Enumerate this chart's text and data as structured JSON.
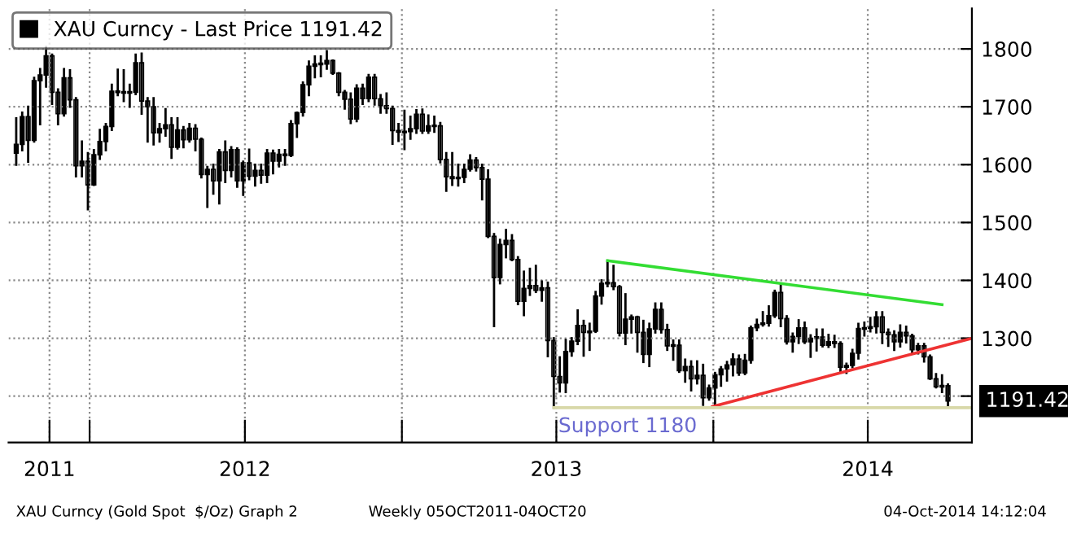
{
  "chart_data": {
    "type": "candlestick",
    "legend": "top left",
    "grid": true,
    "ylim": [
      1120,
      1870
    ],
    "yticks": [
      {
        "value": 1200,
        "label": null
      },
      1300,
      1400,
      1500,
      1600,
      1700,
      1800
    ],
    "xlim": [
      "2011-09-28",
      "2014-10-31"
    ],
    "xticks": [
      {
        "value": "2011-11-15",
        "label": "2011"
      },
      {
        "value": "2012-01-01",
        "label": null
      },
      {
        "value": "2012-07-01",
        "label": "2012"
      },
      {
        "value": "2013-01-01",
        "label": null
      },
      {
        "value": "2013-07-01",
        "label": "2013"
      },
      {
        "value": "2014-01-01",
        "label": null
      },
      {
        "value": "2014-07-01",
        "label": "2014"
      }
    ],
    "series": [
      {
        "name": "XAU Curncy - Last Price 1191.42",
        "color": "#000000",
        "x": [
          "2011-10-07",
          "2011-10-14",
          "2011-10-21",
          "2011-10-28",
          "2011-11-04",
          "2011-11-11",
          "2011-11-18",
          "2011-11-25",
          "2011-12-02",
          "2011-12-09",
          "2011-12-16",
          "2011-12-23",
          "2011-12-30",
          "2012-01-06",
          "2012-01-13",
          "2012-01-20",
          "2012-01-27",
          "2012-02-03",
          "2012-02-10",
          "2012-02-17",
          "2012-02-24",
          "2012-03-02",
          "2012-03-09",
          "2012-03-16",
          "2012-03-23",
          "2012-03-30",
          "2012-04-06",
          "2012-04-13",
          "2012-04-20",
          "2012-04-27",
          "2012-05-04",
          "2012-05-11",
          "2012-05-18",
          "2012-05-25",
          "2012-06-01",
          "2012-06-08",
          "2012-06-15",
          "2012-06-22",
          "2012-06-29",
          "2012-07-06",
          "2012-07-13",
          "2012-07-20",
          "2012-07-27",
          "2012-08-03",
          "2012-08-10",
          "2012-08-17",
          "2012-08-24",
          "2012-08-31",
          "2012-09-07",
          "2012-09-14",
          "2012-09-21",
          "2012-09-28",
          "2012-10-05",
          "2012-10-12",
          "2012-10-19",
          "2012-10-26",
          "2012-11-02",
          "2012-11-09",
          "2012-11-16",
          "2012-11-23",
          "2012-11-30",
          "2012-12-07",
          "2012-12-14",
          "2012-12-21",
          "2012-12-28",
          "2013-01-04",
          "2013-01-11",
          "2013-01-18",
          "2013-01-25",
          "2013-02-01",
          "2013-02-08",
          "2013-02-15",
          "2013-02-22",
          "2013-03-01",
          "2013-03-08",
          "2013-03-15",
          "2013-03-22",
          "2013-03-29",
          "2013-04-05",
          "2013-04-12",
          "2013-04-19",
          "2013-04-26",
          "2013-05-03",
          "2013-05-10",
          "2013-05-17",
          "2013-05-24",
          "2013-05-31",
          "2013-06-07",
          "2013-06-14",
          "2013-06-21",
          "2013-06-28",
          "2013-07-05",
          "2013-07-12",
          "2013-07-19",
          "2013-07-26",
          "2013-08-02",
          "2013-08-09",
          "2013-08-16",
          "2013-08-23",
          "2013-08-30",
          "2013-09-06",
          "2013-09-13",
          "2013-09-20",
          "2013-09-27",
          "2013-10-04",
          "2013-10-11",
          "2013-10-18",
          "2013-10-25",
          "2013-11-01",
          "2013-11-08",
          "2013-11-15",
          "2013-11-22",
          "2013-11-29",
          "2013-12-06",
          "2013-12-13",
          "2013-12-20",
          "2013-12-27",
          "2014-01-03",
          "2014-01-10",
          "2014-01-17",
          "2014-01-24",
          "2014-01-31",
          "2014-02-07",
          "2014-02-14",
          "2014-02-21",
          "2014-02-28",
          "2014-03-07",
          "2014-03-14",
          "2014-03-21",
          "2014-03-28",
          "2014-04-04",
          "2014-04-11",
          "2014-04-18",
          "2014-04-25",
          "2014-05-02",
          "2014-05-09",
          "2014-05-16",
          "2014-05-23",
          "2014-05-30",
          "2014-06-06",
          "2014-06-13",
          "2014-06-20",
          "2014-06-27",
          "2014-07-04",
          "2014-07-11",
          "2014-07-18",
          "2014-07-25",
          "2014-08-01",
          "2014-08-08",
          "2014-08-15",
          "2014-08-22",
          "2014-08-29",
          "2014-09-05",
          "2014-09-12",
          "2014-09-19",
          "2014-09-26",
          "2014-10-03"
        ],
        "ohlc": [
          [
            1620,
            1680,
            1600,
            1635
          ],
          [
            1635,
            1690,
            1625,
            1683
          ],
          [
            1683,
            1700,
            1605,
            1642
          ],
          [
            1642,
            1750,
            1640,
            1745
          ],
          [
            1745,
            1765,
            1670,
            1755
          ],
          [
            1755,
            1803,
            1735,
            1788
          ],
          [
            1788,
            1790,
            1705,
            1725
          ],
          [
            1725,
            1730,
            1670,
            1688
          ],
          [
            1688,
            1765,
            1685,
            1750
          ],
          [
            1750,
            1763,
            1700,
            1712
          ],
          [
            1712,
            1715,
            1580,
            1598
          ],
          [
            1598,
            1640,
            1580,
            1606
          ],
          [
            1606,
            1620,
            1523,
            1565
          ],
          [
            1565,
            1625,
            1565,
            1617
          ],
          [
            1617,
            1660,
            1610,
            1640
          ],
          [
            1640,
            1670,
            1625,
            1666
          ],
          [
            1666,
            1738,
            1660,
            1727
          ],
          [
            1727,
            1764,
            1720,
            1725
          ],
          [
            1725,
            1763,
            1710,
            1725
          ],
          [
            1725,
            1738,
            1700,
            1725
          ],
          [
            1725,
            1790,
            1722,
            1776
          ],
          [
            1776,
            1792,
            1688,
            1710
          ],
          [
            1710,
            1715,
            1640,
            1700
          ],
          [
            1700,
            1715,
            1635,
            1655
          ],
          [
            1655,
            1670,
            1640,
            1662
          ],
          [
            1662,
            1696,
            1650,
            1669
          ],
          [
            1669,
            1680,
            1612,
            1630
          ],
          [
            1630,
            1680,
            1628,
            1660
          ],
          [
            1660,
            1665,
            1630,
            1643
          ],
          [
            1643,
            1670,
            1640,
            1663
          ],
          [
            1663,
            1668,
            1625,
            1644
          ],
          [
            1644,
            1645,
            1578,
            1583
          ],
          [
            1583,
            1596,
            1527,
            1592
          ],
          [
            1592,
            1600,
            1550,
            1572
          ],
          [
            1572,
            1625,
            1533,
            1622
          ],
          [
            1622,
            1640,
            1570,
            1590
          ],
          [
            1590,
            1630,
            1580,
            1626
          ],
          [
            1626,
            1628,
            1562,
            1572
          ],
          [
            1572,
            1605,
            1548,
            1603
          ],
          [
            1603,
            1626,
            1575,
            1580
          ],
          [
            1580,
            1600,
            1564,
            1590
          ],
          [
            1590,
            1600,
            1569,
            1582
          ],
          [
            1582,
            1625,
            1570,
            1620
          ],
          [
            1620,
            1624,
            1585,
            1606
          ],
          [
            1606,
            1625,
            1597,
            1618
          ],
          [
            1618,
            1625,
            1600,
            1616
          ],
          [
            1616,
            1675,
            1615,
            1671
          ],
          [
            1671,
            1690,
            1648,
            1690
          ],
          [
            1690,
            1742,
            1685,
            1738
          ],
          [
            1738,
            1778,
            1720,
            1770
          ],
          [
            1770,
            1787,
            1751,
            1774
          ],
          [
            1774,
            1787,
            1753,
            1774
          ],
          [
            1774,
            1796,
            1766,
            1780
          ],
          [
            1780,
            1780,
            1757,
            1758
          ],
          [
            1758,
            1758,
            1720,
            1725
          ],
          [
            1725,
            1727,
            1697,
            1713
          ],
          [
            1713,
            1723,
            1672,
            1679
          ],
          [
            1679,
            1737,
            1675,
            1732
          ],
          [
            1732,
            1738,
            1705,
            1714
          ],
          [
            1714,
            1755,
            1710,
            1751
          ],
          [
            1751,
            1755,
            1704,
            1714
          ],
          [
            1714,
            1720,
            1690,
            1702
          ],
          [
            1702,
            1723,
            1690,
            1697
          ],
          [
            1697,
            1700,
            1636,
            1659
          ],
          [
            1659,
            1670,
            1641,
            1656
          ],
          [
            1656,
            1693,
            1627,
            1657
          ],
          [
            1657,
            1683,
            1645,
            1662
          ],
          [
            1662,
            1694,
            1655,
            1687
          ],
          [
            1687,
            1695,
            1655,
            1658
          ],
          [
            1658,
            1685,
            1655,
            1667
          ],
          [
            1667,
            1683,
            1657,
            1667
          ],
          [
            1667,
            1672,
            1604,
            1609
          ],
          [
            1609,
            1620,
            1555,
            1579
          ],
          [
            1579,
            1620,
            1565,
            1576
          ],
          [
            1576,
            1600,
            1564,
            1578
          ],
          [
            1578,
            1600,
            1570,
            1592
          ],
          [
            1592,
            1616,
            1590,
            1608
          ],
          [
            1608,
            1611,
            1590,
            1595
          ],
          [
            1595,
            1600,
            1540,
            1575
          ],
          [
            1575,
            1590,
            1475,
            1476
          ],
          [
            1476,
            1480,
            1321,
            1405
          ],
          [
            1405,
            1470,
            1395,
            1462
          ],
          [
            1462,
            1487,
            1440,
            1469
          ],
          [
            1469,
            1478,
            1435,
            1436
          ],
          [
            1436,
            1440,
            1359,
            1364
          ],
          [
            1364,
            1415,
            1340,
            1386
          ],
          [
            1386,
            1420,
            1375,
            1391
          ],
          [
            1391,
            1425,
            1380,
            1383
          ],
          [
            1383,
            1398,
            1365,
            1387
          ],
          [
            1387,
            1396,
            1269,
            1296
          ],
          [
            1296,
            1300,
            1180,
            1234
          ],
          [
            1234,
            1267,
            1208,
            1223
          ],
          [
            1223,
            1297,
            1207,
            1277
          ],
          [
            1277,
            1300,
            1270,
            1295
          ],
          [
            1295,
            1348,
            1290,
            1322
          ],
          [
            1322,
            1330,
            1270,
            1310
          ],
          [
            1310,
            1325,
            1280,
            1312
          ],
          [
            1312,
            1380,
            1311,
            1373
          ],
          [
            1373,
            1400,
            1360,
            1395
          ],
          [
            1395,
            1434,
            1390,
            1396
          ],
          [
            1396,
            1425,
            1385,
            1389
          ],
          [
            1389,
            1390,
            1305,
            1309
          ],
          [
            1309,
            1376,
            1290,
            1333
          ],
          [
            1333,
            1339,
            1310,
            1337
          ],
          [
            1337,
            1337,
            1277,
            1310
          ],
          [
            1310,
            1330,
            1259,
            1272
          ],
          [
            1272,
            1325,
            1252,
            1316
          ],
          [
            1316,
            1360,
            1310,
            1350
          ],
          [
            1350,
            1360,
            1310,
            1315
          ],
          [
            1315,
            1323,
            1280,
            1287
          ],
          [
            1287,
            1296,
            1263,
            1288
          ],
          [
            1288,
            1296,
            1242,
            1244
          ],
          [
            1244,
            1263,
            1225,
            1251
          ],
          [
            1251,
            1260,
            1210,
            1230
          ],
          [
            1230,
            1260,
            1222,
            1236
          ],
          [
            1236,
            1254,
            1185,
            1197
          ],
          [
            1197,
            1218,
            1194,
            1214
          ],
          [
            1214,
            1240,
            1182,
            1237
          ],
          [
            1237,
            1250,
            1218,
            1247
          ],
          [
            1247,
            1259,
            1227,
            1254
          ],
          [
            1254,
            1272,
            1236,
            1264
          ],
          [
            1264,
            1270,
            1237,
            1240
          ],
          [
            1240,
            1271,
            1238,
            1262
          ],
          [
            1262,
            1320,
            1258,
            1318
          ],
          [
            1318,
            1332,
            1314,
            1324
          ],
          [
            1324,
            1345,
            1322,
            1326
          ],
          [
            1326,
            1355,
            1322,
            1339
          ],
          [
            1339,
            1382,
            1337,
            1379
          ],
          [
            1379,
            1392,
            1321,
            1334
          ],
          [
            1334,
            1338,
            1291,
            1294
          ],
          [
            1294,
            1308,
            1277,
            1303
          ],
          [
            1303,
            1331,
            1292,
            1318
          ],
          [
            1318,
            1327,
            1292,
            1294
          ],
          [
            1294,
            1305,
            1268,
            1300
          ],
          [
            1300,
            1315,
            1279,
            1302
          ],
          [
            1302,
            1315,
            1286,
            1288
          ],
          [
            1288,
            1306,
            1285,
            1294
          ],
          [
            1294,
            1304,
            1285,
            1291
          ],
          [
            1291,
            1293,
            1243,
            1250
          ],
          [
            1250,
            1256,
            1240,
            1253
          ],
          [
            1253,
            1280,
            1250,
            1274
          ],
          [
            1274,
            1325,
            1265,
            1317
          ],
          [
            1317,
            1327,
            1305,
            1317
          ],
          [
            1317,
            1335,
            1312,
            1320
          ],
          [
            1320,
            1345,
            1310,
            1337
          ],
          [
            1337,
            1345,
            1292,
            1310
          ],
          [
            1310,
            1315,
            1287,
            1306
          ],
          [
            1306,
            1312,
            1280,
            1294
          ],
          [
            1294,
            1322,
            1286,
            1310
          ],
          [
            1310,
            1320,
            1293,
            1304
          ],
          [
            1304,
            1306,
            1275,
            1280
          ],
          [
            1280,
            1290,
            1274,
            1287
          ],
          [
            1287,
            1290,
            1260,
            1268
          ],
          [
            1268,
            1270,
            1230,
            1230
          ],
          [
            1230,
            1238,
            1215,
            1216
          ],
          [
            1216,
            1236,
            1207,
            1218
          ],
          [
            1218,
            1220,
            1183,
            1191.42
          ]
        ]
      },
      {
        "type": "line",
        "color": "#33dd33",
        "x": [
          "2013-08-30",
          "2014-09-26"
        ],
        "values": [
          1434,
          1358
        ]
      },
      {
        "type": "line",
        "color": "#ee3333",
        "x": [
          "2013-12-31",
          "2014-10-31"
        ],
        "values": [
          1182,
          1300
        ]
      },
      {
        "type": "line",
        "color": "#d8d8a8",
        "x": [
          "2013-06-28",
          "2014-10-31"
        ],
        "values": [
          1180,
          1180
        ]
      }
    ],
    "annotations": [
      "Support 1180",
      "1191.42",
      "XAU Curncy (Gold Spot  $/Oz) Graph 2",
      "Weekly 05OCT2011-04OCT20",
      "04-Oct-2014 14:12:04"
    ]
  }
}
